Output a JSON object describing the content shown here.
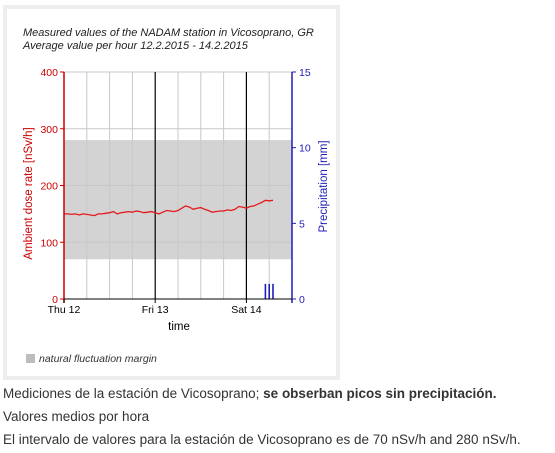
{
  "chart_data": {
    "type": "line",
    "title": "Measured values of the NADAM station in Vicosoprano, GR",
    "subtitle": "Average value per hour 12.2.2015 - 14.2.2015",
    "xlabel": "time",
    "ylabel_left": "Ambient dose rate [nSv/h]",
    "ylabel_right": "Precipitation [mm]",
    "ylim_left": [
      0,
      400
    ],
    "ylim_right": [
      0,
      15
    ],
    "yticks_left": [
      0,
      100,
      200,
      300,
      400
    ],
    "yticks_right": [
      0,
      5,
      10,
      15
    ],
    "xlim_hours": [
      0,
      60
    ],
    "xticks": [
      {
        "label": "Thu 12",
        "hour": 0
      },
      {
        "label": "Fri 13",
        "hour": 24
      },
      {
        "label": "Sat 14",
        "hour": 48
      }
    ],
    "fluctuation_band": [
      70,
      280
    ],
    "legend": [
      "natural fluctuation margin"
    ],
    "colors": {
      "dose": "#e31a1c",
      "precip": "#1f1fb4",
      "band": "#d3d3d3",
      "left_axis": "#cc0000",
      "right_axis": "#1f1fb4"
    },
    "series": [
      {
        "axis": "left",
        "x": [
          0,
          1,
          2,
          3,
          4,
          5,
          6,
          7,
          8,
          9,
          10,
          11,
          12,
          13,
          14,
          15,
          16,
          17,
          18,
          19,
          20,
          21,
          22,
          23,
          24,
          25,
          26,
          27,
          28,
          29,
          30,
          31,
          32,
          33,
          34,
          35,
          36,
          37,
          38,
          39,
          40,
          41,
          42,
          43,
          44,
          45,
          46,
          47,
          48,
          49,
          50,
          51,
          52,
          53,
          54,
          55
        ],
        "values": [
          150,
          150,
          149,
          150,
          148,
          150,
          149,
          148,
          147,
          150,
          150,
          151,
          152,
          154,
          150,
          152,
          153,
          154,
          153,
          155,
          154,
          152,
          153,
          154,
          152,
          150,
          153,
          156,
          155,
          154,
          156,
          160,
          164,
          162,
          158,
          160,
          161,
          158,
          156,
          153,
          154,
          155,
          155,
          157,
          156,
          158,
          163,
          162,
          160,
          163,
          164,
          167,
          170,
          174,
          173,
          174
        ]
      },
      {
        "axis": "right",
        "type": "bar",
        "x": [
          53,
          54,
          55
        ],
        "values": [
          1.0,
          1.0,
          1.0
        ]
      }
    ]
  },
  "caption": {
    "line1_normal": "Mediciones de la estación de Vicosoprano; ",
    "line1_bold": "se obserban picos sin precipitación.",
    "line2": "Valores medios por hora",
    "line3": "El intervalo de valores para la estación de Vicosoprano es de 70 nSv/h and 280 nSv/h."
  }
}
